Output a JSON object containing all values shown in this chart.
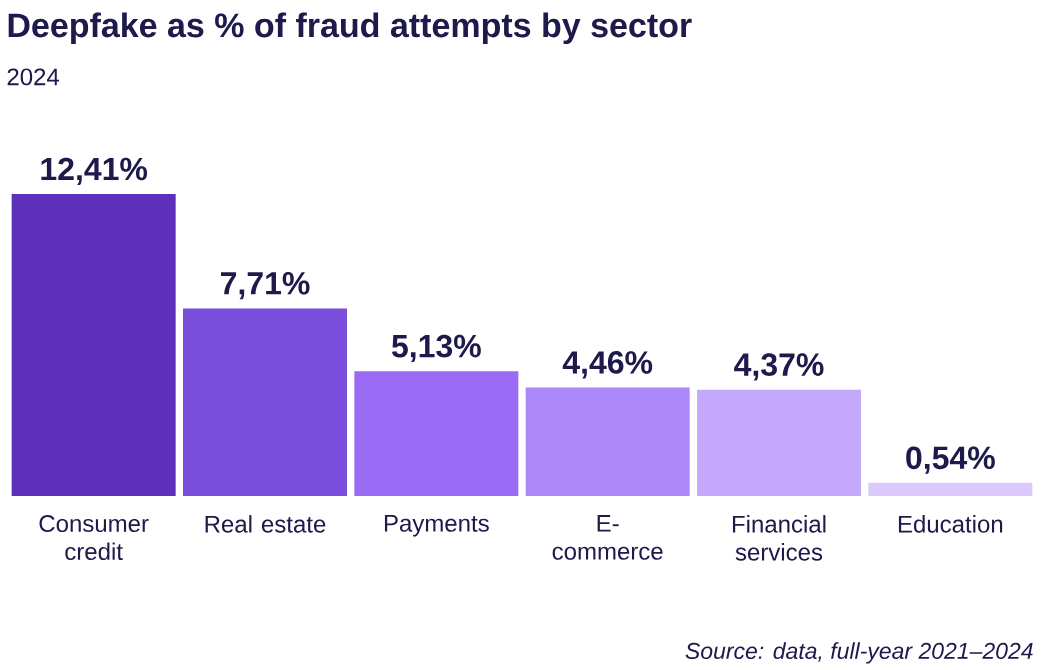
{
  "chart_data": {
    "type": "bar",
    "title": "Deepfake as % of fraud attempts by sector",
    "subtitle": "2024",
    "categories": [
      "Consumer credit",
      "Real estate",
      "Payments",
      "E-commerce",
      "Financial services",
      "Education"
    ],
    "values": [
      12.41,
      7.71,
      5.13,
      4.46,
      4.37,
      0.54
    ],
    "value_labels": [
      "12,41%",
      "7,71%",
      "5,13%",
      "4,46%",
      "4,37%",
      "0,54%"
    ],
    "colors": [
      "#5c30b8",
      "#7a4fdc",
      "#9a6cf6",
      "#ad88f8",
      "#c4a8fb",
      "#dccafd"
    ],
    "annotations": [
      "Source: data, full-year 2021–2024"
    ]
  }
}
